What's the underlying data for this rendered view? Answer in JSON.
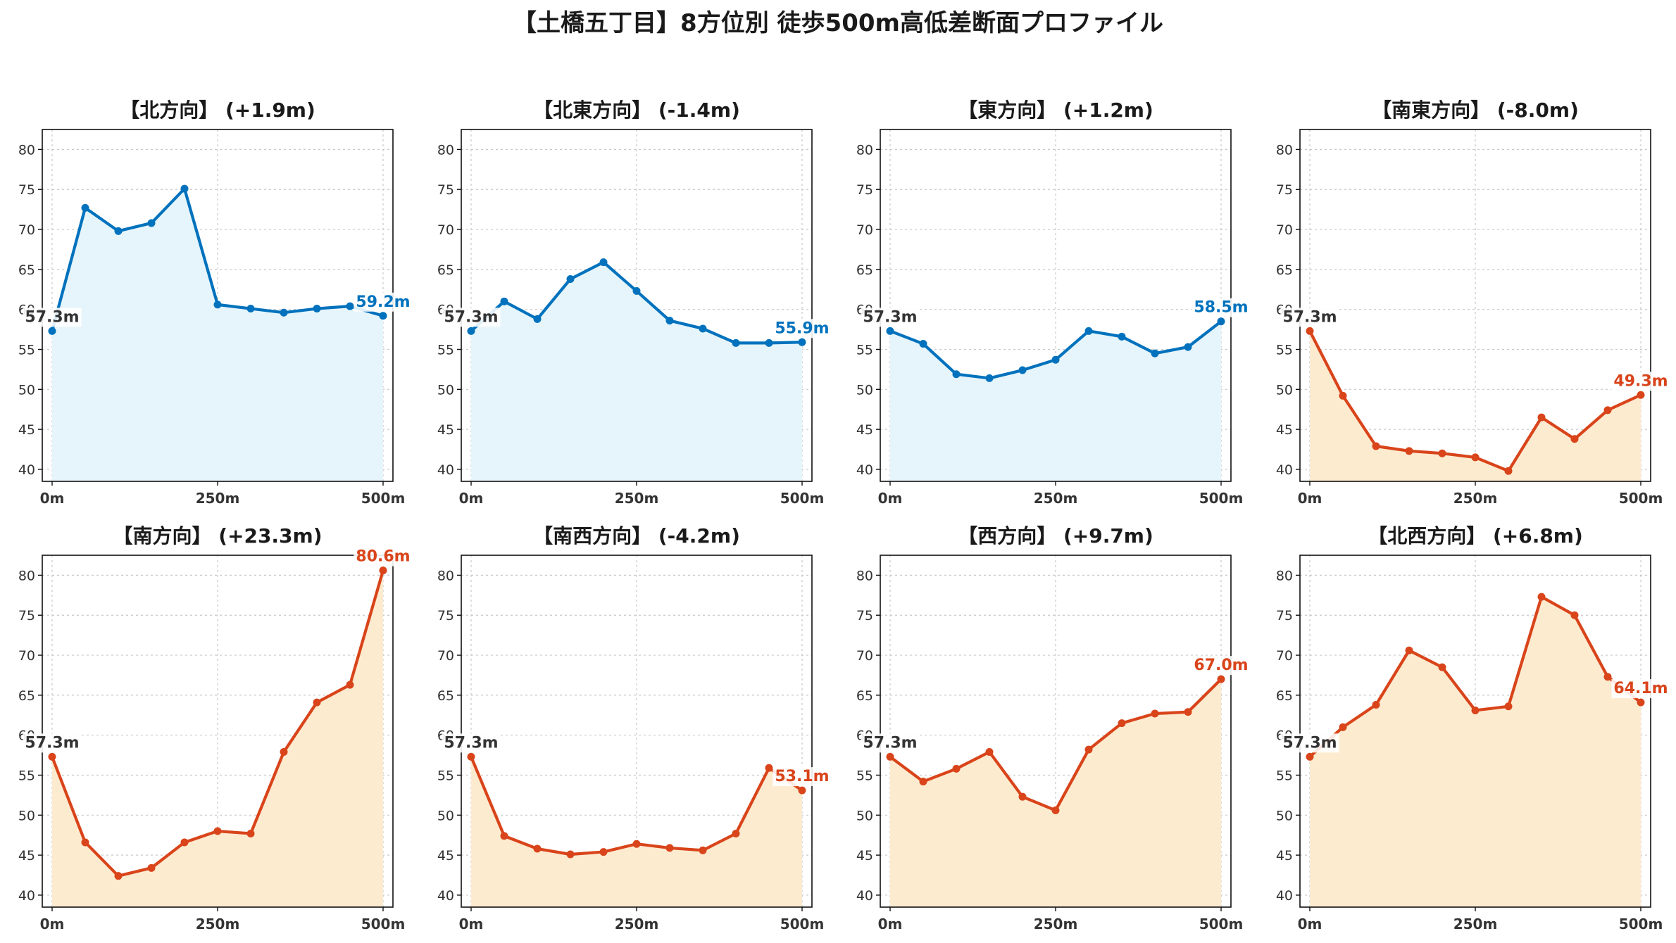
{
  "title": "【土橋五丁目】8方位別 徒歩500m高低差断面プロファイル",
  "colors": {
    "up": "#0072bd",
    "up_fill": "#e6f5fb",
    "down": "#d9441a",
    "down_fill": "#fdebd0",
    "start_label": "#333333"
  },
  "chart_data": [
    {
      "type": "area",
      "title": "【北方向】 (+1.9m)",
      "series_color": "up",
      "x": [
        0,
        50,
        100,
        150,
        200,
        250,
        300,
        350,
        400,
        450,
        500
      ],
      "y": [
        57.3,
        72.7,
        69.8,
        70.8,
        75.1,
        60.6,
        60.1,
        59.6,
        60.1,
        60.4,
        59.2
      ],
      "start_label": "57.3m",
      "end_label": "59.2m",
      "ylim": [
        38.5,
        82.5
      ],
      "yticks": [
        40,
        45,
        50,
        55,
        60,
        65,
        70,
        75,
        80
      ],
      "xticks": [
        0,
        250,
        500
      ],
      "xtick_labels": [
        "0m",
        "250m",
        "500m"
      ],
      "grid": true
    },
    {
      "type": "area",
      "title": "【北東方向】 (-1.4m)",
      "series_color": "up",
      "x": [
        0,
        50,
        100,
        150,
        200,
        250,
        300,
        350,
        400,
        450,
        500
      ],
      "y": [
        57.3,
        61.0,
        58.8,
        63.8,
        65.9,
        62.3,
        58.6,
        57.6,
        55.8,
        55.8,
        55.9
      ],
      "start_label": "57.3m",
      "end_label": "55.9m",
      "ylim": [
        38.5,
        82.5
      ],
      "yticks": [
        40,
        45,
        50,
        55,
        60,
        65,
        70,
        75,
        80
      ],
      "xticks": [
        0,
        250,
        500
      ],
      "xtick_labels": [
        "0m",
        "250m",
        "500m"
      ],
      "grid": true
    },
    {
      "type": "area",
      "title": "【東方向】 (+1.2m)",
      "series_color": "up",
      "x": [
        0,
        50,
        100,
        150,
        200,
        250,
        300,
        350,
        400,
        450,
        500
      ],
      "y": [
        57.3,
        55.7,
        51.9,
        51.4,
        52.4,
        53.7,
        57.3,
        56.6,
        54.5,
        55.3,
        58.5
      ],
      "start_label": "57.3m",
      "end_label": "58.5m",
      "ylim": [
        38.5,
        82.5
      ],
      "yticks": [
        40,
        45,
        50,
        55,
        60,
        65,
        70,
        75,
        80
      ],
      "xticks": [
        0,
        250,
        500
      ],
      "xtick_labels": [
        "0m",
        "250m",
        "500m"
      ],
      "grid": true
    },
    {
      "type": "area",
      "title": "【南東方向】 (-8.0m)",
      "series_color": "down",
      "x": [
        0,
        50,
        100,
        150,
        200,
        250,
        300,
        350,
        400,
        450,
        500
      ],
      "y": [
        57.3,
        49.2,
        42.9,
        42.3,
        42.0,
        41.5,
        39.8,
        46.5,
        43.8,
        47.4,
        49.3
      ],
      "start_label": "57.3m",
      "end_label": "49.3m",
      "ylim": [
        38.5,
        82.5
      ],
      "yticks": [
        40,
        45,
        50,
        55,
        60,
        65,
        70,
        75,
        80
      ],
      "xticks": [
        0,
        250,
        500
      ],
      "xtick_labels": [
        "0m",
        "250m",
        "500m"
      ],
      "grid": true
    },
    {
      "type": "area",
      "title": "【南方向】 (+23.3m)",
      "series_color": "down",
      "x": [
        0,
        50,
        100,
        150,
        200,
        250,
        300,
        350,
        400,
        450,
        500
      ],
      "y": [
        57.3,
        46.6,
        42.4,
        43.4,
        46.6,
        48.0,
        47.7,
        57.9,
        64.1,
        66.3,
        80.6
      ],
      "start_label": "57.3m",
      "end_label": "80.6m",
      "ylim": [
        38.5,
        82.5
      ],
      "yticks": [
        40,
        45,
        50,
        55,
        60,
        65,
        70,
        75,
        80
      ],
      "xticks": [
        0,
        250,
        500
      ],
      "xtick_labels": [
        "0m",
        "250m",
        "500m"
      ],
      "grid": true
    },
    {
      "type": "area",
      "title": "【南西方向】 (-4.2m)",
      "series_color": "down",
      "x": [
        0,
        50,
        100,
        150,
        200,
        250,
        300,
        350,
        400,
        450,
        500
      ],
      "y": [
        57.3,
        47.4,
        45.8,
        45.1,
        45.4,
        46.4,
        45.9,
        45.6,
        47.7,
        55.9,
        53.1
      ],
      "start_label": "57.3m",
      "end_label": "53.1m",
      "ylim": [
        38.5,
        82.5
      ],
      "yticks": [
        40,
        45,
        50,
        55,
        60,
        65,
        70,
        75,
        80
      ],
      "xticks": [
        0,
        250,
        500
      ],
      "xtick_labels": [
        "0m",
        "250m",
        "500m"
      ],
      "grid": true
    },
    {
      "type": "area",
      "title": "【西方向】 (+9.7m)",
      "series_color": "down",
      "x": [
        0,
        50,
        100,
        150,
        200,
        250,
        300,
        350,
        400,
        450,
        500
      ],
      "y": [
        57.3,
        54.2,
        55.8,
        57.9,
        52.3,
        50.6,
        58.2,
        61.5,
        62.7,
        62.9,
        67.0
      ],
      "start_label": "57.3m",
      "end_label": "67.0m",
      "ylim": [
        38.5,
        82.5
      ],
      "yticks": [
        40,
        45,
        50,
        55,
        60,
        65,
        70,
        75,
        80
      ],
      "xticks": [
        0,
        250,
        500
      ],
      "xtick_labels": [
        "0m",
        "250m",
        "500m"
      ],
      "grid": true
    },
    {
      "type": "area",
      "title": "【北西方向】 (+6.8m)",
      "series_color": "down",
      "x": [
        0,
        50,
        100,
        150,
        200,
        250,
        300,
        350,
        400,
        450,
        500
      ],
      "y": [
        57.3,
        61.0,
        63.8,
        70.6,
        68.5,
        63.1,
        63.6,
        77.3,
        75.0,
        67.3,
        64.1
      ],
      "start_label": "57.3m",
      "end_label": "64.1m",
      "ylim": [
        38.5,
        82.5
      ],
      "yticks": [
        40,
        45,
        50,
        55,
        60,
        65,
        70,
        75,
        80
      ],
      "xticks": [
        0,
        250,
        500
      ],
      "xtick_labels": [
        "0m",
        "250m",
        "500m"
      ],
      "grid": true
    }
  ]
}
